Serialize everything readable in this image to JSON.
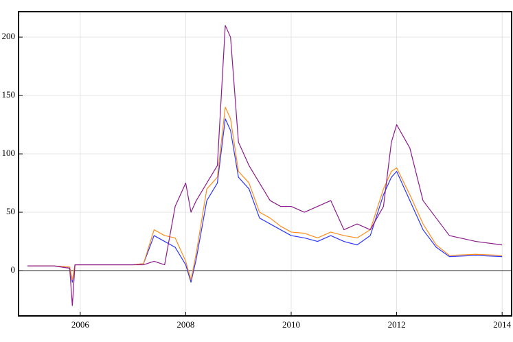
{
  "chart_data": {
    "type": "line",
    "x": [
      2005.0,
      2005.5,
      2005.8,
      2005.85,
      2005.9,
      2006.0,
      2006.5,
      2007.0,
      2007.2,
      2007.4,
      2007.6,
      2007.8,
      2008.0,
      2008.1,
      2008.2,
      2008.4,
      2008.6,
      2008.75,
      2008.85,
      2009.0,
      2009.2,
      2009.4,
      2009.6,
      2009.8,
      2010.0,
      2010.25,
      2010.5,
      2010.75,
      2011.0,
      2011.25,
      2011.5,
      2011.75,
      2011.9,
      2012.0,
      2012.25,
      2012.5,
      2012.75,
      2013.0,
      2013.5,
      2014.0
    ],
    "series": [
      {
        "color": "#2b35ff",
        "values": [
          4,
          4,
          3,
          -10,
          5,
          5,
          5,
          5,
          6,
          30,
          25,
          20,
          5,
          -10,
          10,
          60,
          75,
          130,
          120,
          80,
          70,
          45,
          40,
          35,
          30,
          28,
          25,
          30,
          25,
          22,
          30,
          65,
          80,
          85,
          60,
          35,
          20,
          12,
          13,
          12
        ]
      },
      {
        "color": "#ff8c1a",
        "values": [
          4,
          4,
          3,
          -8,
          5,
          5,
          5,
          5,
          6,
          35,
          30,
          28,
          8,
          -8,
          15,
          70,
          80,
          140,
          130,
          85,
          75,
          50,
          45,
          38,
          33,
          32,
          28,
          33,
          30,
          28,
          35,
          70,
          85,
          88,
          65,
          40,
          22,
          13,
          14,
          13
        ]
      },
      {
        "color": "#8b1a8b",
        "values": [
          4,
          4,
          2,
          -30,
          5,
          5,
          5,
          5,
          5,
          8,
          5,
          55,
          75,
          50,
          60,
          75,
          90,
          210,
          200,
          110,
          90,
          75,
          60,
          55,
          55,
          50,
          55,
          60,
          35,
          40,
          35,
          55,
          110,
          125,
          105,
          60,
          45,
          30,
          25,
          22
        ]
      }
    ],
    "xlim": [
      2004.83,
      2014.18
    ],
    "xticks": [
      2006,
      2008,
      2010,
      2012,
      2014
    ],
    "ylim": [
      -38.8,
      221.8
    ],
    "yticks": [
      0,
      50,
      100,
      150,
      200
    ],
    "grid": true
  }
}
